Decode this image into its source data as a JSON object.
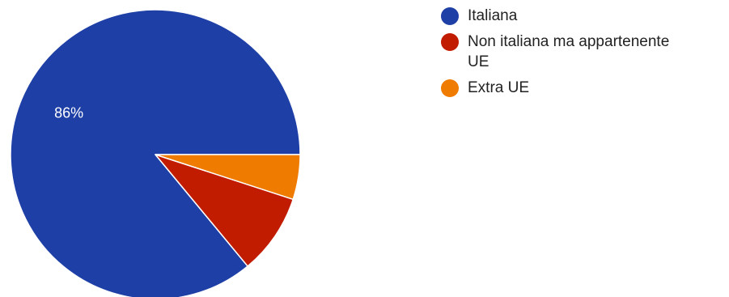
{
  "chart_data": {
    "type": "pie",
    "categories": [
      "Italiana",
      "Non italiana ma appartenente UE",
      "Extra UE"
    ],
    "values": [
      86,
      9,
      5
    ],
    "slice_labels": [
      "86%",
      "",
      ""
    ],
    "legend": {
      "position": "right",
      "entries": [
        {
          "lines": [
            "Italiana"
          ]
        },
        {
          "lines": [
            "Non italiana ma appartenente",
            "UE"
          ]
        },
        {
          "lines": [
            "Extra UE"
          ]
        }
      ]
    },
    "colors": [
      "#1e3fa6",
      "#c11b00",
      "#ef7b00"
    ],
    "start": "3 o'clock",
    "direction": "counter-clockwise"
  }
}
